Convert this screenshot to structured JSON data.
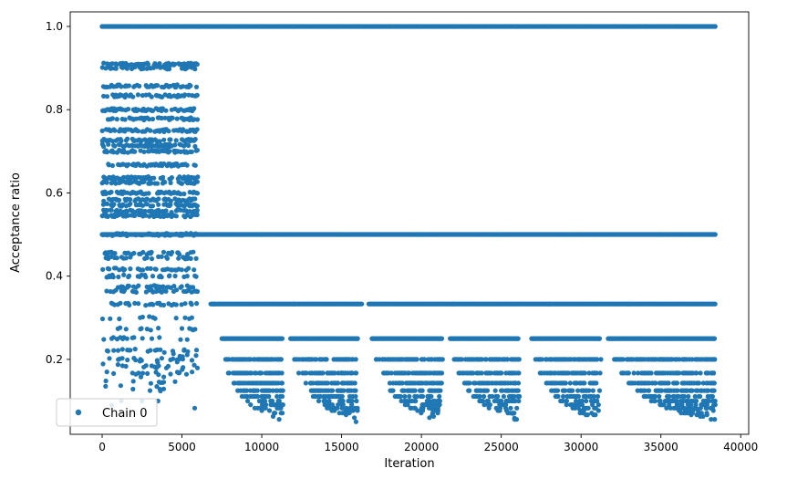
{
  "chart_data": {
    "type": "scatter",
    "title": "",
    "xlabel": "Iteration",
    "ylabel": "Acceptance ratio",
    "xlim": [
      -2000,
      40500
    ],
    "ylim": [
      0.02,
      1.035
    ],
    "xticks": [
      {
        "value": 0,
        "label": "0"
      },
      {
        "value": 5000,
        "label": "5000"
      },
      {
        "value": 10000,
        "label": "10000"
      },
      {
        "value": 15000,
        "label": "15000"
      },
      {
        "value": 20000,
        "label": "20000"
      },
      {
        "value": 25000,
        "label": "25000"
      },
      {
        "value": 30000,
        "label": "30000"
      },
      {
        "value": 35000,
        "label": "35000"
      },
      {
        "value": 40000,
        "label": "40000"
      }
    ],
    "yticks": [
      {
        "value": 0.2,
        "label": "0.2"
      },
      {
        "value": 0.4,
        "label": "0.4"
      },
      {
        "value": 0.6,
        "label": "0.6"
      },
      {
        "value": 0.8,
        "label": "0.8"
      },
      {
        "value": 1.0,
        "label": "1.0"
      }
    ],
    "grid": false,
    "legend_position": "lower-left",
    "series_color": "#1f77b4",
    "series": [
      {
        "name": "Chain 0",
        "marker": "circle",
        "approximate_structure": {
          "warmup_end_iteration": 6000,
          "last_iteration": 38400,
          "constant_levels": [
            1.0,
            0.5
          ],
          "warmup_levels": [
            0.909,
            0.9,
            0.857,
            0.833,
            0.8,
            0.778,
            0.75,
            0.727,
            0.714,
            0.7,
            0.667,
            0.636,
            0.625,
            0.6,
            0.583,
            0.571,
            0.556,
            0.545,
            0.5,
            0.455,
            0.444,
            0.417,
            0.4,
            0.375,
            0.364,
            0.333,
            0.3,
            0.273,
            0.25,
            0.222,
            0.2,
            0.182,
            0.167
          ],
          "level_0_333": [
            [
              6800,
              16300
            ],
            [
              16700,
              38400
            ]
          ],
          "level_0_25": [
            [
              7500,
              11300
            ],
            [
              11800,
              16000
            ],
            [
              16900,
              21300
            ],
            [
              21800,
              26100
            ],
            [
              26900,
              31200
            ],
            [
              31700,
              38400
            ]
          ]
        },
        "points": [
          [
            0,
            1.0
          ],
          [
            2000,
            1.0
          ],
          [
            4000,
            1.0
          ],
          [
            6000,
            1.0
          ],
          [
            8000,
            1.0
          ],
          [
            10000,
            1.0
          ],
          [
            12000,
            1.0
          ],
          [
            14000,
            1.0
          ],
          [
            16000,
            1.0
          ],
          [
            18000,
            1.0
          ],
          [
            20000,
            1.0
          ],
          [
            22000,
            1.0
          ],
          [
            24000,
            1.0
          ],
          [
            26000,
            1.0
          ],
          [
            28000,
            1.0
          ],
          [
            30000,
            1.0
          ],
          [
            32000,
            1.0
          ],
          [
            34000,
            1.0
          ],
          [
            36000,
            1.0
          ],
          [
            38400,
            1.0
          ],
          [
            0,
            0.5
          ],
          [
            5000,
            0.5
          ],
          [
            10000,
            0.5
          ],
          [
            15000,
            0.5
          ],
          [
            20000,
            0.5
          ],
          [
            25000,
            0.5
          ],
          [
            30000,
            0.5
          ],
          [
            35000,
            0.5
          ],
          [
            38400,
            0.5
          ],
          [
            7000,
            0.333
          ],
          [
            12000,
            0.333
          ],
          [
            16000,
            0.333
          ],
          [
            22000,
            0.333
          ],
          [
            28000,
            0.333
          ],
          [
            33000,
            0.333
          ],
          [
            38400,
            0.333
          ],
          [
            7600,
            0.25
          ],
          [
            11000,
            0.25
          ],
          [
            12000,
            0.25
          ],
          [
            16000,
            0.25
          ],
          [
            17000,
            0.25
          ],
          [
            21200,
            0.25
          ],
          [
            22000,
            0.25
          ],
          [
            26000,
            0.25
          ],
          [
            27000,
            0.25
          ],
          [
            31100,
            0.25
          ],
          [
            32000,
            0.25
          ],
          [
            38300,
            0.25
          ],
          [
            7800,
            0.2
          ],
          [
            11000,
            0.2
          ],
          [
            14000,
            0.2
          ],
          [
            19000,
            0.2
          ],
          [
            24000,
            0.2
          ],
          [
            29000,
            0.2
          ],
          [
            35000,
            0.2
          ],
          [
            38300,
            0.2
          ],
          [
            7900,
            0.167
          ],
          [
            15000,
            0.167
          ],
          [
            20000,
            0.167
          ],
          [
            25000,
            0.167
          ],
          [
            30000,
            0.167
          ],
          [
            36000,
            0.167
          ],
          [
            38300,
            0.167
          ],
          [
            9500,
            0.125
          ],
          [
            15000,
            0.125
          ],
          [
            20500,
            0.125
          ],
          [
            25500,
            0.125
          ],
          [
            30500,
            0.125
          ],
          [
            35500,
            0.125
          ],
          [
            10200,
            0.1
          ],
          [
            15500,
            0.1
          ],
          [
            20800,
            0.1
          ],
          [
            25800,
            0.1
          ],
          [
            31000,
            0.1
          ],
          [
            35700,
            0.1
          ],
          [
            38300,
            0.09
          ],
          [
            10000,
            0.077
          ],
          [
            15800,
            0.06
          ],
          [
            15900,
            0.05
          ],
          [
            20500,
            0.06
          ],
          [
            25700,
            0.07
          ],
          [
            30900,
            0.067
          ],
          [
            36000,
            0.085
          ],
          [
            37800,
            0.1
          ],
          [
            500,
            0.909
          ],
          [
            2500,
            0.909
          ],
          [
            5000,
            0.909
          ],
          [
            1000,
            0.833
          ],
          [
            3000,
            0.75
          ],
          [
            4000,
            0.7
          ],
          [
            2000,
            0.667
          ],
          [
            4500,
            0.6
          ],
          [
            1500,
            0.556
          ],
          [
            3500,
            0.545
          ],
          [
            800,
            0.455
          ],
          [
            2800,
            0.444
          ],
          [
            4200,
            0.4
          ],
          [
            1200,
            0.375
          ],
          [
            3100,
            0.333
          ],
          [
            5200,
            0.3
          ],
          [
            2400,
            0.273
          ],
          [
            600,
            0.25
          ],
          [
            1700,
            0.222
          ],
          [
            4800,
            0.2
          ],
          [
            3300,
            0.182
          ],
          [
            1900,
            0.167
          ],
          [
            600,
            0.09
          ],
          [
            1200,
            0.1
          ],
          [
            2500,
            0.1
          ],
          [
            3000,
            0.125
          ],
          [
            3500,
            0.1
          ],
          [
            5800,
            0.083
          ]
        ]
      }
    ]
  }
}
